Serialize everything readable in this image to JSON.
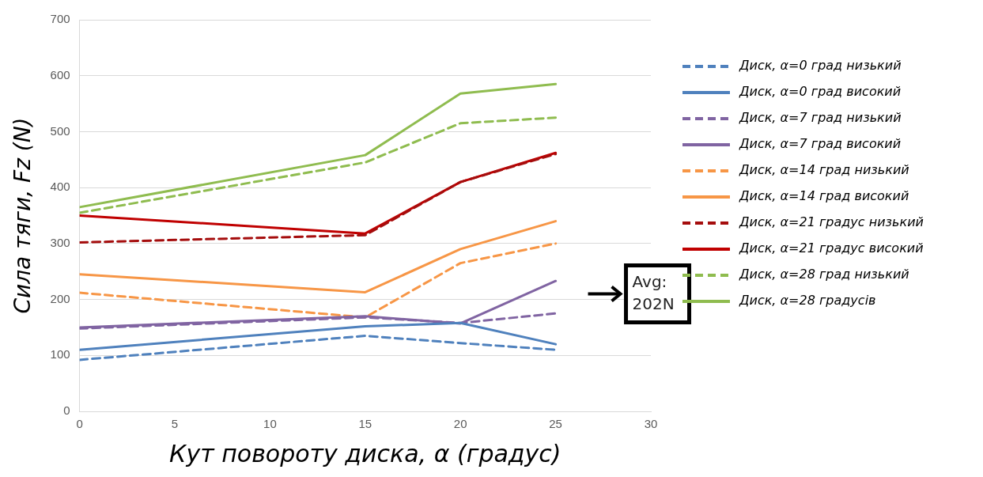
{
  "chart_data": {
    "type": "line",
    "xlabel": "Кут повороту диска, α (градус)",
    "ylabel": "Сила тяги, Fz (N)",
    "x": [
      0,
      15,
      20,
      25
    ],
    "xlim": [
      0,
      30
    ],
    "xticks": [
      0,
      5,
      10,
      15,
      20,
      25,
      30
    ],
    "ylim": [
      0,
      700
    ],
    "yticks": [
      0,
      100,
      200,
      300,
      400,
      500,
      600,
      700
    ],
    "grid": "y",
    "legend": "right",
    "marker": "none",
    "series": [
      {
        "name": "Диск, α=0 град низький",
        "color": "#4f81bd",
        "line_style": "dashed",
        "values": [
          92,
          135,
          122,
          110
        ]
      },
      {
        "name": "Диск, α=0 град високий",
        "color": "#4f81bd",
        "line_style": "solid",
        "values": [
          110,
          152,
          158,
          120
        ]
      },
      {
        "name": "Диск, α=7 град низький",
        "color": "#8064a2",
        "line_style": "dashed",
        "values": [
          148,
          168,
          158,
          175
        ]
      },
      {
        "name": "Диск, α=7 град високий",
        "color": "#8064a2",
        "line_style": "solid",
        "values": [
          150,
          170,
          157,
          233
        ]
      },
      {
        "name": "Диск, α=14 град низький",
        "color": "#f79646",
        "line_style": "dashed",
        "values": [
          212,
          168,
          265,
          300
        ]
      },
      {
        "name": "Диск, α=14 град високий",
        "color": "#f79646",
        "line_style": "solid",
        "values": [
          245,
          213,
          290,
          340
        ]
      },
      {
        "name": "Диск, α=21 градус низький",
        "color": "#a50d0d",
        "line_style": "dashed",
        "values": [
          302,
          315,
          410,
          460
        ]
      },
      {
        "name": "Диск, α=21 градус високий",
        "color": "#c00000",
        "line_style": "solid",
        "values": [
          350,
          318,
          410,
          462
        ]
      },
      {
        "name": "Диск, α=28 град низький",
        "color": "#8fbc4f",
        "line_style": "dashed",
        "values": [
          355,
          445,
          515,
          525
        ]
      },
      {
        "name": "Диск, α=28 градусів",
        "color": "#8fbc4f",
        "line_style": "solid",
        "values": [
          365,
          458,
          568,
          585
        ]
      }
    ],
    "annotations": [
      "Avg: 202N"
    ]
  }
}
